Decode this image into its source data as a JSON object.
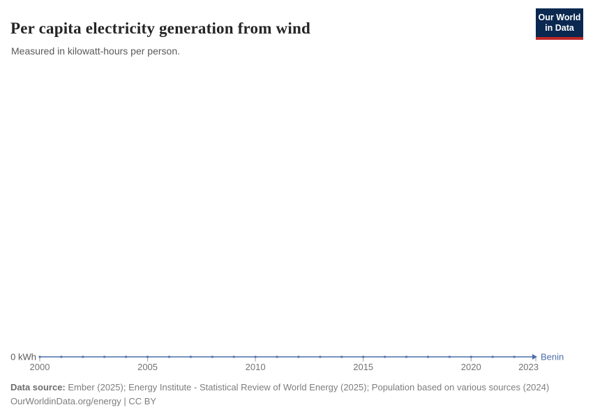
{
  "header": {
    "title": "Per capita electricity generation from wind",
    "subtitle": "Measured in kilowatt-hours per person."
  },
  "logo": {
    "line1": "Our World",
    "line2": "in Data",
    "bg_color": "#0A2850",
    "accent_color": "#BE2828"
  },
  "chart_data": {
    "type": "line",
    "title": "Per capita electricity generation from wind",
    "xlabel": "",
    "ylabel": "kilowatt-hours per person",
    "x": [
      2000,
      2001,
      2002,
      2003,
      2004,
      2005,
      2006,
      2007,
      2008,
      2009,
      2010,
      2011,
      2012,
      2013,
      2014,
      2015,
      2016,
      2017,
      2018,
      2019,
      2020,
      2021,
      2022,
      2023
    ],
    "series": [
      {
        "name": "Benin",
        "color": "#4C6EA9",
        "values": [
          0,
          0,
          0,
          0,
          0,
          0,
          0,
          0,
          0,
          0,
          0,
          0,
          0,
          0,
          0,
          0,
          0,
          0,
          0,
          0,
          0,
          0,
          0,
          0
        ]
      }
    ],
    "xticks": [
      2000,
      2005,
      2010,
      2015,
      2020,
      2023
    ],
    "xtick_labels": [
      "2000",
      "2005",
      "2010",
      "2015",
      "2020",
      "2023"
    ],
    "y_axis_label": "0 kWh",
    "ylim": [
      0,
      0
    ],
    "grid": false,
    "legend_position": "end-of-line",
    "axis_label_color": "#737373",
    "y_label_color": "#5b5b5b",
    "tick_color": "#9a9a9a"
  },
  "footer": {
    "source_label": "Data source:",
    "source_text": " Ember (2025); Energy Institute - Statistical Review of World Energy (2025); Population based on various sources (2024)",
    "license_text": "OurWorldinData.org/energy | CC BY"
  }
}
